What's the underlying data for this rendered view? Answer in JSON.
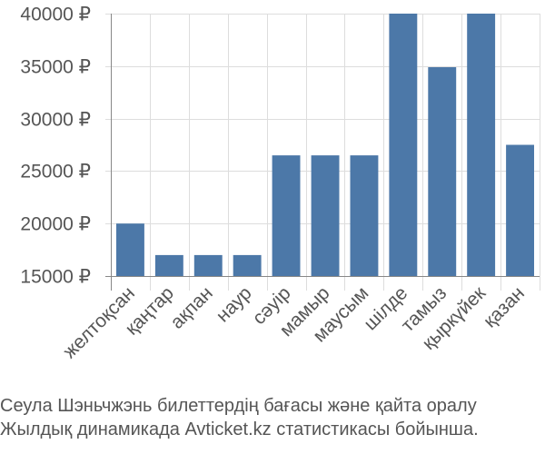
{
  "chart_data": {
    "type": "bar",
    "categories": [
      "желтоқсан",
      "қаңтар",
      "ақпан",
      "наур",
      "сәуір",
      "мамыр",
      "маусым",
      "шілде",
      "тамыз",
      "қыркүйек",
      "қазан"
    ],
    "values": [
      20000,
      17000,
      17000,
      17000,
      26500,
      26500,
      26500,
      40000,
      34900,
      40000,
      27500
    ],
    "ylim": [
      15000,
      40000
    ],
    "yticks": [
      15000,
      20000,
      25000,
      30000,
      35000,
      40000
    ],
    "ytick_labels": [
      "15000 ₽",
      "20000 ₽",
      "25000 ₽",
      "30000 ₽",
      "35000 ₽",
      "40000 ₽"
    ],
    "grid": true,
    "bar_color": "#4c78a8"
  },
  "caption": {
    "line1": "Сеула Шэньчжэнь билеттердің бағасы және қайта оралу",
    "line2": "Жылдық динамикада Avticket.kz статистикасы бойынша."
  }
}
